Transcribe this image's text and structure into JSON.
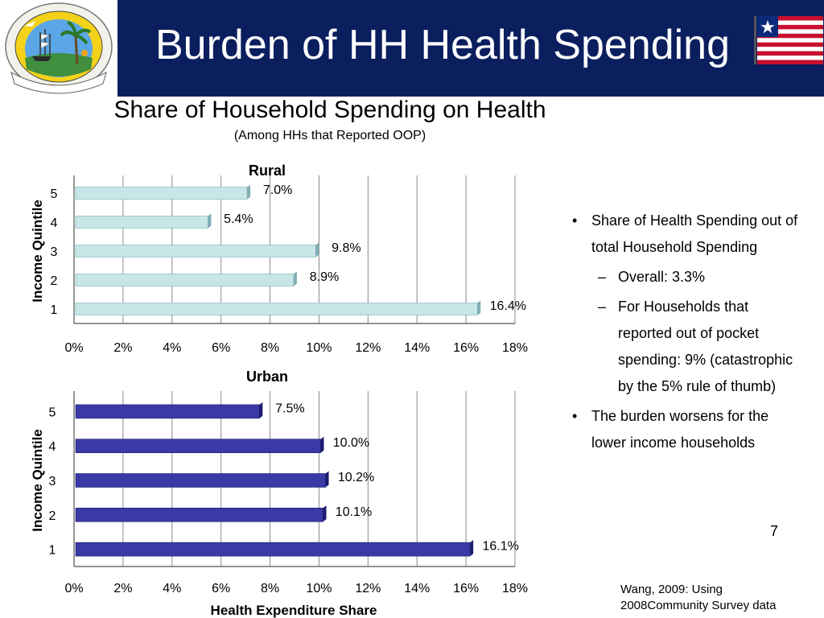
{
  "header": {
    "title": "Burden of HH Health Spending",
    "band_color": "#0b1f5e",
    "seal_ring_text": "THE LOVE OF LIBERTY BROUGHT US HERE",
    "seal_banner_text": "REPUBLIC OF LIBERIA",
    "seal_icon": "liberia-seal-icon",
    "flag_icon": "liberia-flag-icon"
  },
  "subtitle": "Share of Household Spending on Health",
  "subnote": "(Among HHs that Reported OOP)",
  "chart_data": [
    {
      "type": "bar",
      "orientation": "horizontal",
      "title": "Rural",
      "categories": [
        "1",
        "2",
        "3",
        "4",
        "5"
      ],
      "values": [
        16.4,
        8.9,
        9.8,
        5.4,
        7.0
      ],
      "data_labels": [
        "16.4%",
        "8.9%",
        "9.8%",
        "5.4%",
        "7.0%"
      ],
      "xlim": [
        0,
        18
      ],
      "x_ticks": [
        "0%",
        "2%",
        "4%",
        "6%",
        "8%",
        "10%",
        "12%",
        "14%",
        "16%",
        "18%"
      ],
      "ylabel": "Income Quintile",
      "xlabel": "",
      "grid": true,
      "bar_color": "#c6e6e8",
      "bar_side_color": "#7faeb3"
    },
    {
      "type": "bar",
      "orientation": "horizontal",
      "title": "Urban",
      "categories": [
        "1",
        "2",
        "3",
        "4",
        "5"
      ],
      "values": [
        16.1,
        10.1,
        10.2,
        10.0,
        7.5
      ],
      "data_labels": [
        "16.1%",
        "10.1%",
        "10.2%",
        "10.0%",
        "7.5%"
      ],
      "xlim": [
        0,
        18
      ],
      "x_ticks": [
        "0%",
        "2%",
        "4%",
        "6%",
        "8%",
        "10%",
        "12%",
        "14%",
        "16%",
        "18%"
      ],
      "ylabel": "Income Quintile",
      "xlabel": "Health Expenditure Share",
      "grid": true,
      "bar_color": "#3a3aa6",
      "bar_side_color": "#1c1c6e"
    }
  ],
  "bullets": {
    "b1": "Share of Health Spending out of total Household Spending",
    "b1_sub1": "Overall: 3.3%",
    "b1_sub2": "For Households that reported out of pocket spending: 9% (catastrophic by the 5% rule of thumb)",
    "b2": "The burden worsens for the lower income households"
  },
  "page_number": "7",
  "source_note": {
    "line1": "Wang, 2009: Using",
    "line2": "2008Community Survey data"
  }
}
